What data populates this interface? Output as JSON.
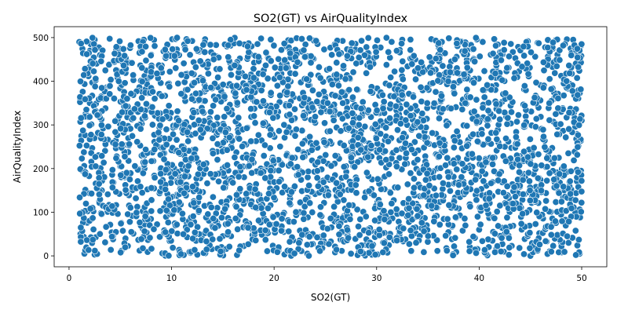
{
  "chart_data": {
    "type": "scatter",
    "title": "SO2(GT) vs AirQualityIndex",
    "xlabel": "SO2(GT)",
    "ylabel": "AirQualityIndex",
    "xlim": [
      -1.45,
      52.45
    ],
    "ylim": [
      -25,
      525
    ],
    "x_ticks": [
      0,
      10,
      20,
      30,
      40,
      50
    ],
    "y_ticks": [
      0,
      100,
      200,
      300,
      400,
      500
    ],
    "grid": false,
    "legend": "none",
    "point_count": 3000,
    "points_x_range": [
      1,
      50
    ],
    "points_y_range": [
      0,
      500
    ],
    "point_color": "#1f77b4",
    "point_edge_color": "#ffffff",
    "sample_points": [
      [
        1.0,
        490
      ],
      [
        1.2,
        275
      ],
      [
        1.3,
        100
      ],
      [
        1.5,
        5
      ],
      [
        2.0,
        320
      ],
      [
        2.5,
        495
      ],
      [
        3.2,
        150
      ],
      [
        5.0,
        205
      ],
      [
        7.3,
        495
      ],
      [
        10.0,
        180
      ],
      [
        12.5,
        330
      ],
      [
        15.0,
        45
      ],
      [
        17.8,
        480
      ],
      [
        20.0,
        215
      ],
      [
        22.5,
        100
      ],
      [
        25.0,
        365
      ],
      [
        27.5,
        5
      ],
      [
        30.0,
        290
      ],
      [
        32.5,
        495
      ],
      [
        35.0,
        140
      ],
      [
        37.5,
        420
      ],
      [
        40.0,
        60
      ],
      [
        42.5,
        250
      ],
      [
        45.0,
        0
      ],
      [
        47.5,
        495
      ],
      [
        48.0,
        330
      ],
      [
        49.8,
        5
      ],
      [
        50.0,
        310
      ]
    ]
  }
}
